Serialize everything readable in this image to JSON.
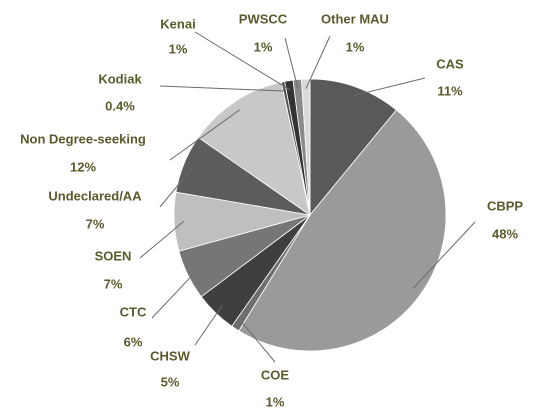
{
  "chart_data": {
    "type": "pie",
    "categories": [
      "CAS",
      "CBPP",
      "COE",
      "CHSW",
      "CTC",
      "SOEN",
      "Undeclared/AA",
      "Non Degree-seeking",
      "Kodiak",
      "Kenai",
      "PWSCC",
      "Other MAU"
    ],
    "values": [
      11,
      48,
      1,
      5,
      6,
      7,
      7,
      12,
      0.4,
      1,
      1,
      1
    ],
    "value_labels": [
      "11%",
      "48%",
      "1%",
      "5%",
      "6%",
      "7%",
      "7%",
      "12%",
      "0.4%",
      "1%",
      "1%",
      "1%"
    ],
    "colors": [
      "#595959",
      "#9a9a9a",
      "#6e6e6e",
      "#3f3f3f",
      "#767676",
      "#bfbfbf",
      "#5c5c5c",
      "#c8c8c8",
      "#555555",
      "#333333",
      "#8a8a8a",
      "#d9d9d9"
    ]
  }
}
